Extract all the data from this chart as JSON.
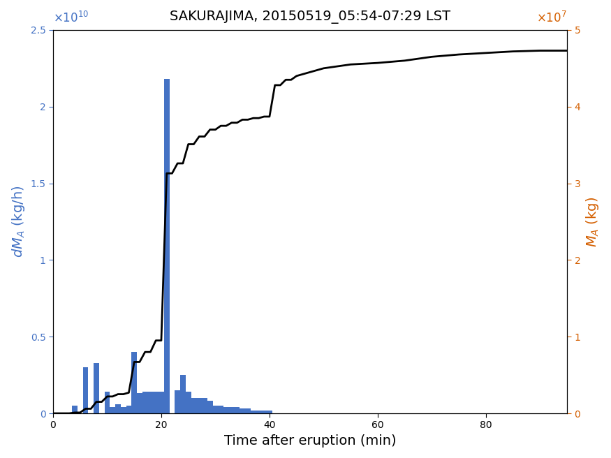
{
  "title": "SAKURAJIMA, 20150519_05:54-07:29 LST",
  "xlabel": "Time after eruption (min)",
  "ylabel_left": "dM_A (kg/h)",
  "ylabel_right": "M_A (kg)",
  "xlim": [
    0,
    95
  ],
  "ylim_left": [
    0,
    25000000000.0
  ],
  "ylim_right": [
    0,
    50000000.0
  ],
  "bar_color": "#4472C4",
  "line_color": "#000000",
  "left_label_color": "#4472C4",
  "right_label_color": "#D45F00",
  "bar_width": 1.0,
  "bar_centers": [
    1,
    2,
    3,
    4,
    5,
    6,
    7,
    8,
    9,
    10,
    11,
    12,
    13,
    14,
    15,
    16,
    17,
    18,
    19,
    20,
    21,
    22,
    23,
    24,
    25,
    26,
    27,
    28,
    29,
    30,
    31,
    32,
    33,
    34,
    35,
    36,
    37,
    38,
    39,
    40,
    41,
    42,
    43,
    44,
    45,
    46,
    47,
    48,
    49,
    50,
    51,
    52,
    53,
    54,
    55,
    56,
    57,
    58,
    59,
    60,
    65,
    70,
    75,
    80,
    85,
    90
  ],
  "bar_heights": [
    0.0,
    0.0,
    0.0,
    500000000.0,
    0.0,
    3000000000.0,
    0.0,
    3300000000.0,
    0.0,
    1400000000.0,
    400000000.0,
    600000000.0,
    400000000.0,
    500000000.0,
    4000000000.0,
    1300000000.0,
    1400000000.0,
    1400000000.0,
    1400000000.0,
    1400000000.0,
    21800000000.0,
    0.0,
    1500000000.0,
    2500000000.0,
    1400000000.0,
    1000000000.0,
    1000000000.0,
    1000000000.0,
    800000000.0,
    500000000.0,
    500000000.0,
    400000000.0,
    400000000.0,
    400000000.0,
    300000000.0,
    300000000.0,
    200000000.0,
    200000000.0,
    200000000.0,
    200000000.0,
    0.0,
    0.0,
    0.0,
    0.0,
    0.0,
    0.0,
    0.0,
    0.0,
    0.0,
    0.0,
    0.0,
    0.0,
    0.0,
    0.0,
    0.0,
    0.0,
    0.0,
    0.0,
    0.0,
    0.0,
    0.0,
    0.0,
    0.0,
    0.0,
    0.0,
    0.0
  ],
  "cum_x": [
    0,
    1,
    2,
    3,
    4,
    5,
    6,
    7,
    8,
    9,
    10,
    11,
    12,
    13,
    14,
    15,
    16,
    17,
    18,
    19,
    20,
    21,
    22,
    23,
    24,
    25,
    26,
    27,
    28,
    29,
    30,
    31,
    32,
    33,
    34,
    35,
    36,
    37,
    38,
    39,
    40,
    41,
    42,
    43,
    44,
    45,
    50,
    55,
    60,
    65,
    70,
    75,
    80,
    85,
    90,
    95
  ],
  "cum_y": [
    0,
    0,
    0,
    0,
    100000.0,
    100000.0,
    600000.0,
    600000.0,
    1500000.0,
    1500000.0,
    2200000.0,
    2200000.0,
    2500000.0,
    2500000.0,
    2700000.0,
    6700000.0,
    6700000.0,
    8000000.0,
    8000000.0,
    9500000.0,
    9500000.0,
    31300000.0,
    31300000.0,
    32600000.0,
    32600000.0,
    35100000.0,
    35100000.0,
    36100000.0,
    36100000.0,
    37000000.0,
    37000000.0,
    37500000.0,
    37500000.0,
    37900000.0,
    37900000.0,
    38300000.0,
    38300000.0,
    38500000.0,
    38500000.0,
    38700000.0,
    38700000.0,
    42800000.0,
    42800000.0,
    43500000.0,
    43500000.0,
    44000000.0,
    45000000.0,
    45500000.0,
    45700000.0,
    46000000.0,
    46500000.0,
    46800000.0,
    47000000.0,
    47200000.0,
    47300000.0,
    47300000.0
  ],
  "xticks": [
    0,
    20,
    40,
    60,
    80
  ],
  "yticks_left": [
    0,
    5000000000.0,
    10000000000.0,
    15000000000.0,
    20000000000.0,
    25000000000.0
  ],
  "yticks_right": [
    0,
    10000000.0,
    20000000.0,
    30000000.0,
    40000000.0,
    50000000.0
  ]
}
